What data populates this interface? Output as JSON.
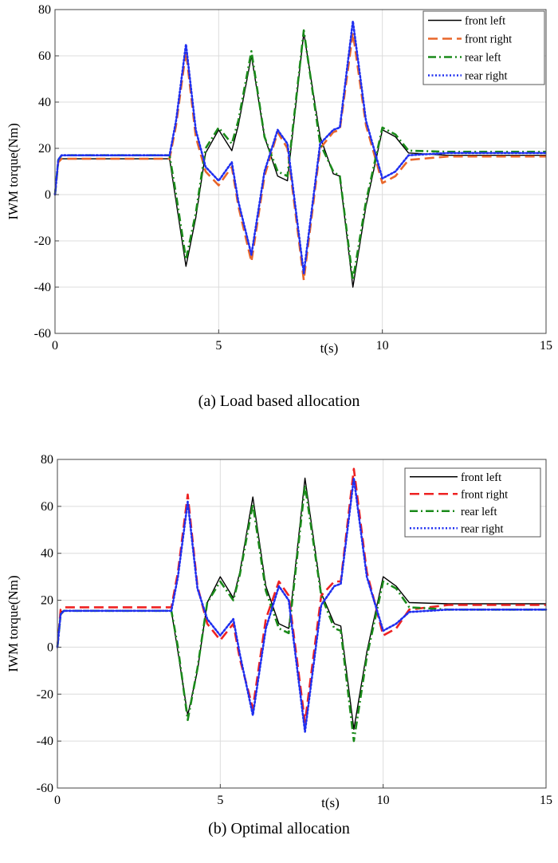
{
  "chart_data": [
    {
      "type": "line",
      "caption": "(a) Load based allocation",
      "xlabel": "t(s)",
      "ylabel": "IWM torque(Nm)",
      "xlim": [
        0,
        15
      ],
      "ylim": [
        -60,
        80
      ],
      "xticks": [
        0,
        5,
        10,
        15
      ],
      "yticks": [
        -60,
        -40,
        -20,
        0,
        20,
        40,
        60,
        80
      ],
      "grid": true,
      "legend_position": "top-right",
      "series": [
        {
          "name": "front left",
          "color": "#000000",
          "dash": "solid",
          "x": [
            0,
            0.1,
            0.2,
            3.5,
            3.7,
            4,
            4.3,
            4.6,
            5,
            5.4,
            5.6,
            6,
            6.4,
            6.8,
            7.1,
            7.6,
            8.1,
            8.5,
            8.7,
            9.1,
            9.5,
            10,
            10.4,
            10.8,
            12,
            15
          ],
          "y": [
            0,
            14,
            15.5,
            15.5,
            -3,
            -31,
            -10,
            18,
            28,
            19,
            30,
            60,
            25,
            8,
            6,
            70,
            25,
            9,
            8,
            -40,
            -5,
            28,
            25,
            18,
            17,
            17
          ]
        },
        {
          "name": "front right",
          "color": "#e8662a",
          "dash": "dashed",
          "x": [
            0,
            0.1,
            0.2,
            3.5,
            3.7,
            4,
            4.3,
            4.6,
            5,
            5.4,
            5.6,
            6,
            6.4,
            6.8,
            7.1,
            7.6,
            8.1,
            8.5,
            8.7,
            9.1,
            9.5,
            10,
            10.4,
            10.8,
            12,
            15
          ],
          "y": [
            0,
            14,
            15.5,
            15.5,
            30,
            62,
            25,
            10,
            4,
            12,
            -5,
            -29,
            8,
            27,
            20,
            -37,
            20,
            27,
            28,
            70,
            30,
            5,
            8,
            15,
            16.5,
            16.5
          ]
        },
        {
          "name": "rear left",
          "color": "#1a8a1a",
          "dash": "dashdot",
          "x": [
            0,
            0.1,
            0.2,
            3.5,
            3.7,
            4,
            4.3,
            4.6,
            5,
            5.4,
            5.6,
            6,
            6.4,
            6.8,
            7.1,
            7.6,
            8.1,
            8.5,
            8.7,
            9.1,
            9.5,
            10,
            10.4,
            10.8,
            12,
            15
          ],
          "y": [
            0,
            15,
            17,
            17,
            0,
            -28,
            -8,
            20,
            29,
            22,
            32,
            62,
            25,
            10,
            8,
            71,
            22,
            10,
            8,
            -37,
            -3,
            29,
            26,
            19,
            18.5,
            18.5
          ]
        },
        {
          "name": "rear right",
          "color": "#1f2ff0",
          "dash": "dotted",
          "x": [
            0,
            0.1,
            0.2,
            3.5,
            3.7,
            4,
            4.3,
            4.6,
            5,
            5.4,
            5.6,
            6,
            6.4,
            6.8,
            7.1,
            7.6,
            8.1,
            8.5,
            8.7,
            9.1,
            9.5,
            10,
            10.4,
            10.8,
            12,
            15
          ],
          "y": [
            0,
            15,
            17,
            17,
            32,
            65,
            28,
            12,
            6,
            14,
            -3,
            -26,
            10,
            28,
            22,
            -34,
            22,
            28,
            29,
            75,
            32,
            7,
            10,
            17,
            18,
            18
          ]
        }
      ]
    },
    {
      "type": "line",
      "caption": "(b) Optimal allocation",
      "xlabel": "t(s)",
      "ylabel": "IWM torque(Nm)",
      "xlim": [
        0,
        15
      ],
      "ylim": [
        -60,
        80
      ],
      "xticks": [
        0,
        5,
        10,
        15
      ],
      "yticks": [
        -60,
        -40,
        -20,
        0,
        20,
        40,
        60,
        80
      ],
      "grid": true,
      "legend_position": "top-right",
      "series": [
        {
          "name": "front left",
          "color": "#000000",
          "dash": "solid",
          "x": [
            0,
            0.1,
            0.2,
            3.5,
            3.7,
            4,
            4.3,
            4.6,
            5,
            5.4,
            5.6,
            6,
            6.4,
            6.8,
            7.1,
            7.6,
            8.1,
            8.5,
            8.7,
            9.1,
            9.5,
            10,
            10.4,
            10.8,
            12,
            15
          ],
          "y": [
            0,
            15,
            15.5,
            15.5,
            -2,
            -29,
            -10,
            19,
            30,
            21,
            32,
            64,
            26,
            10,
            8,
            72,
            23,
            10,
            9,
            -35,
            -2,
            30,
            26,
            19,
            18.5,
            18.5
          ]
        },
        {
          "name": "front right",
          "color": "#ee2222",
          "dash": "dashed",
          "x": [
            0,
            0.1,
            0.2,
            3.5,
            3.7,
            4,
            4.3,
            4.6,
            5,
            5.4,
            5.6,
            6,
            6.4,
            6.8,
            7.1,
            7.6,
            8.1,
            8.5,
            8.7,
            9.1,
            9.5,
            10,
            10.4,
            10.8,
            12,
            15
          ],
          "y": [
            0,
            16,
            17,
            17,
            32,
            65,
            26,
            10,
            3,
            10,
            -5,
            -26,
            12,
            28,
            22,
            -32,
            22,
            28,
            28,
            76,
            32,
            5,
            8,
            16,
            18,
            18
          ]
        },
        {
          "name": "rear left",
          "color": "#1a8a1a",
          "dash": "dashdot",
          "x": [
            0,
            0.1,
            0.2,
            3.5,
            3.7,
            4,
            4.3,
            4.6,
            5,
            5.4,
            5.6,
            6,
            6.4,
            6.8,
            7.1,
            7.6,
            8.1,
            8.5,
            8.7,
            9.1,
            9.5,
            10,
            10.4,
            10.8,
            12,
            15
          ],
          "y": [
            0,
            14,
            15.5,
            15.5,
            0,
            -31,
            -9,
            19,
            28,
            20,
            31,
            61,
            24,
            8,
            6,
            69,
            22,
            8,
            7,
            -40,
            -4,
            28,
            25,
            17,
            16,
            16
          ]
        },
        {
          "name": "rear right",
          "color": "#1f2ff0",
          "dash": "dotted",
          "x": [
            0,
            0.1,
            0.2,
            3.5,
            3.7,
            4,
            4.3,
            4.6,
            5,
            5.4,
            5.6,
            6,
            6.4,
            6.8,
            7.1,
            7.6,
            8.1,
            8.5,
            8.7,
            9.1,
            9.5,
            10,
            10.4,
            10.8,
            12,
            15
          ],
          "y": [
            0,
            14,
            15.5,
            15.5,
            30,
            62,
            25,
            12,
            5,
            12,
            -3,
            -29,
            8,
            26,
            20,
            -36,
            18,
            26,
            27,
            72,
            30,
            7,
            10,
            15,
            16,
            16
          ]
        }
      ]
    }
  ]
}
